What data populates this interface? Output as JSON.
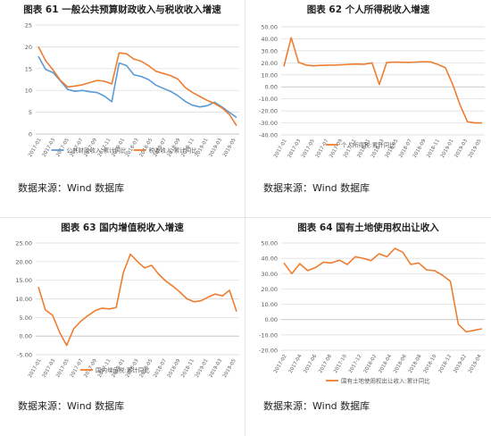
{
  "charts": [
    {
      "title": "图表 61  一般公共预算财政收入与税收收入增速",
      "source": "数据来源：Wind 数据库"
    },
    {
      "title": "图表 62  个人所得税收入增速",
      "source": "数据来源：Wind 数据库"
    },
    {
      "title": "图表 63  国内增值税收入增速",
      "source": "数据来源：Wind 数据库"
    },
    {
      "title": "图表 64  国有土地使用权出让收入",
      "source": "数据来源：Wind 数据库"
    }
  ],
  "chart_data": [
    {
      "type": "line",
      "title": "图表 61  一般公共预算财政收入与税收收入增速",
      "ylim": [
        0,
        25
      ],
      "yticks": [
        "0",
        "5",
        "10",
        "15",
        "20",
        "25"
      ],
      "ytick_values": [
        0,
        5,
        10,
        15,
        20,
        25
      ],
      "xticks": [
        "2017-01",
        "2017-03",
        "2017-05",
        "2017-07",
        "2017-09",
        "2017-11",
        "2018-01",
        "2018-03",
        "2018-05",
        "2018-07",
        "2018-09",
        "2018-11",
        "2019-01",
        "2019-03",
        "2019-05"
      ],
      "grid": true,
      "legend_position": "bottom",
      "series": [
        {
          "name": "公共财政收入:累计同比",
          "color": "#5b9bd5",
          "values": [
            17.8,
            14.8,
            14.1,
            12.2,
            10.2,
            9.8,
            10.0,
            9.7,
            9.5,
            8.7,
            7.4,
            16.3,
            15.7,
            13.6,
            13.2,
            12.5,
            11.2,
            10.5,
            9.8,
            8.8,
            7.5,
            6.6,
            6.2,
            6.5,
            7.3,
            6.2,
            5.0,
            3.8
          ]
        },
        {
          "name": "税收收入:累计同比",
          "color": "#ed7d31",
          "values": [
            20.0,
            16.8,
            14.7,
            12.3,
            10.8,
            11.0,
            11.3,
            11.8,
            12.3,
            12.1,
            11.5,
            18.6,
            18.4,
            17.2,
            16.7,
            15.7,
            14.4,
            13.9,
            13.4,
            12.6,
            10.7,
            9.5,
            8.6,
            7.7,
            7.0,
            6.0,
            4.5,
            1.9
          ]
        }
      ]
    },
    {
      "type": "line",
      "title": "图表 62  个人所得税收入增速",
      "ylim": [
        -40,
        50
      ],
      "yticks": [
        "50.00",
        "40.00",
        "30.00",
        "20.00",
        "10.00",
        "0.00",
        "-10.00",
        "-20.00",
        "-30.00",
        "-40.00"
      ],
      "ytick_values": [
        50,
        40,
        30,
        20,
        10,
        0,
        -10,
        -20,
        -30,
        -40
      ],
      "xticks": [
        "2017-01",
        "2017-03",
        "2017-05",
        "2017-07",
        "2017-09",
        "2017-11",
        "2018-01",
        "2018-03",
        "2018-05",
        "2018-07",
        "2018-09",
        "2018-11",
        "2019-01",
        "2019-03",
        "2019-05"
      ],
      "grid": true,
      "legend_position": "bottom",
      "series": [
        {
          "name": "个人所得税:累计同比",
          "color": "#ed7d31",
          "values": [
            17.0,
            41.0,
            20.5,
            18.2,
            17.5,
            17.9,
            18.1,
            18.2,
            18.4,
            18.8,
            19.0,
            18.8,
            20.0,
            2.0,
            20.2,
            20.6,
            20.5,
            20.4,
            20.6,
            21.0,
            20.8,
            18.5,
            16.0,
            2.0,
            -15.0,
            -29.0,
            -30.0,
            -30.0
          ]
        }
      ]
    },
    {
      "type": "line",
      "title": "图表 63  国内增值税收入增速",
      "ylim": [
        -5,
        25
      ],
      "yticks": [
        "25.00",
        "20.00",
        "15.00",
        "10.00",
        "5.00",
        "0.00",
        "-5.00"
      ],
      "ytick_values": [
        25,
        20,
        15,
        10,
        5,
        0,
        -5
      ],
      "xticks": [
        "2017-01",
        "2017-03",
        "2017-05",
        "2017-07",
        "2017-09",
        "2017-11",
        "2018-01",
        "2018-03",
        "2018-05",
        "2018-07",
        "2018-09",
        "2018-11",
        "2019-01",
        "2019-03",
        "2019-05"
      ],
      "grid": true,
      "legend_position": "bottom",
      "series": [
        {
          "name": "国内增值税:累计同比",
          "color": "#ed7d31",
          "values": [
            13.2,
            7.0,
            5.6,
            1.0,
            -2.5,
            2.0,
            4.0,
            5.5,
            6.8,
            7.5,
            7.3,
            7.7,
            17.0,
            22.0,
            20.0,
            18.3,
            19.0,
            16.6,
            14.8,
            13.4,
            11.8,
            10.0,
            9.2,
            9.5,
            10.5,
            11.3,
            10.8,
            12.3,
            6.6
          ]
        }
      ]
    },
    {
      "type": "line",
      "title": "图表 64  国有土地使用权出让收入",
      "ylim": [
        -20,
        50
      ],
      "yticks": [
        "50.00",
        "40.00",
        "30.00",
        "20.00",
        "10.00",
        "0.00",
        "-10.00",
        "-20.00"
      ],
      "ytick_values": [
        50,
        40,
        30,
        20,
        10,
        0,
        -10,
        -20
      ],
      "xticks": [
        "2017-02",
        "2017-04",
        "2017-06",
        "2017-08",
        "2017-10",
        "2017-12",
        "2018-02",
        "2018-04",
        "2018-06",
        "2018-08",
        "2018-10",
        "2018-12",
        "2019-02",
        "2019-04"
      ],
      "grid": true,
      "legend_position": "bottom",
      "series": [
        {
          "name": "国有土地使用权出让收入:累计同比",
          "color": "#ed7d31",
          "values": [
            37.0,
            30.0,
            36.5,
            32.0,
            34.0,
            37.5,
            37.0,
            38.8,
            36.0,
            41.0,
            40.0,
            38.5,
            43.0,
            41.0,
            46.5,
            44.0,
            36.0,
            37.0,
            32.5,
            32.0,
            29.0,
            25.0,
            -3.0,
            -8.0,
            -7.0,
            -6.0
          ]
        }
      ]
    }
  ]
}
